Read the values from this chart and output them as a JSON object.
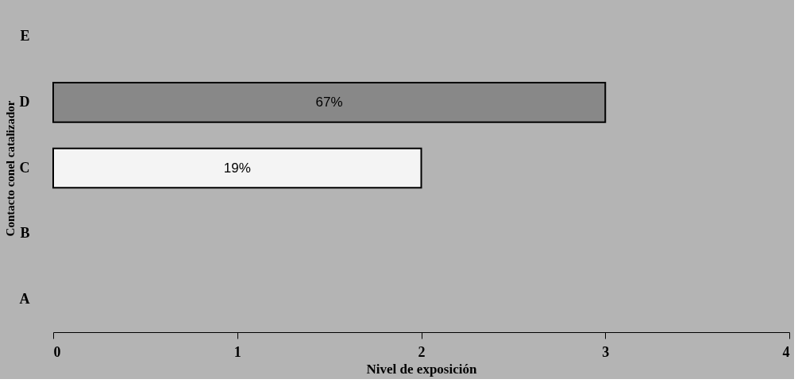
{
  "chart_data": {
    "type": "bar",
    "orientation": "horizontal",
    "xlabel": "Nivel de exposición",
    "ylabel": "Contacto conel catalizador",
    "categories": [
      "E",
      "D",
      "C",
      "B",
      "A"
    ],
    "values": [
      null,
      3,
      2,
      null,
      null
    ],
    "colors": [
      "#888888",
      "#888888",
      "#f4f4f4",
      "#888888",
      "#888888"
    ],
    "annotations": [
      "67%",
      "19%"
    ],
    "xlim": [
      0,
      4
    ],
    "xticks": [
      0,
      1,
      2,
      3,
      4
    ],
    "grid": false
  }
}
